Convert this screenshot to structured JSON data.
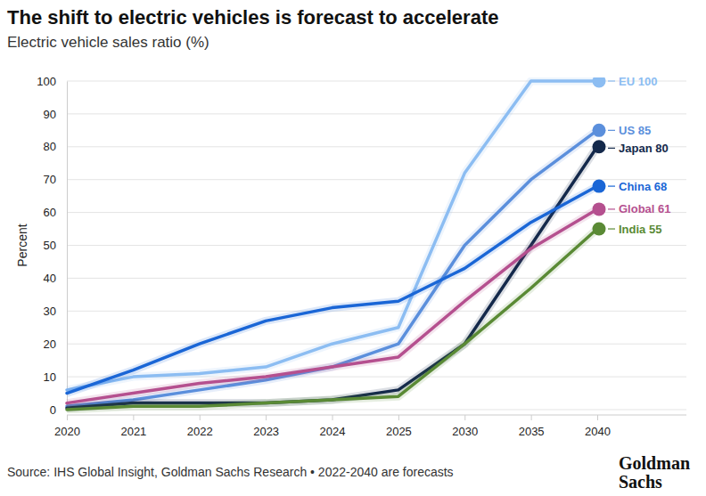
{
  "chart_data": {
    "type": "line",
    "title": "The shift to electric vehicles is forecast to accelerate",
    "subtitle": "Electric vehicle sales ratio (%)",
    "y_label": "Percent",
    "source": "Source: IHS Global Insight, Goldman Sachs Research • 2022-2040 are forecasts",
    "brand": [
      "Goldman",
      "Sachs"
    ],
    "categories": [
      "2020",
      "2021",
      "2022",
      "2023",
      "2024",
      "2025",
      "2030",
      "2035",
      "2040"
    ],
    "ylim": [
      0,
      100
    ],
    "yticks": [
      0,
      10,
      20,
      30,
      40,
      50,
      60,
      70,
      80,
      90,
      100
    ],
    "grid": true,
    "marker": "circle",
    "series": [
      {
        "name": "EU 100",
        "color": "#8cbdf2",
        "values": [
          6,
          10,
          11,
          13,
          20,
          25,
          72,
          100,
          100
        ]
      },
      {
        "name": "US 85",
        "color": "#5b8fdc",
        "values": [
          1,
          3,
          6,
          9,
          13,
          20,
          50,
          70,
          85
        ]
      },
      {
        "name": "Japan 80",
        "color": "#14294b",
        "values": [
          0.5,
          2,
          2,
          2,
          3,
          6,
          20,
          50,
          80
        ]
      },
      {
        "name": "China 68",
        "color": "#1a66d6",
        "values": [
          5,
          12,
          20,
          27,
          31,
          33,
          43,
          57,
          68
        ]
      },
      {
        "name": "Global 61",
        "color": "#b5508f",
        "values": [
          2,
          5,
          8,
          10,
          13,
          16,
          33,
          49,
          61
        ]
      },
      {
        "name": "India 55",
        "color": "#5a8a35",
        "values": [
          0,
          1,
          1,
          2,
          3,
          4,
          20,
          37,
          55
        ]
      }
    ]
  }
}
